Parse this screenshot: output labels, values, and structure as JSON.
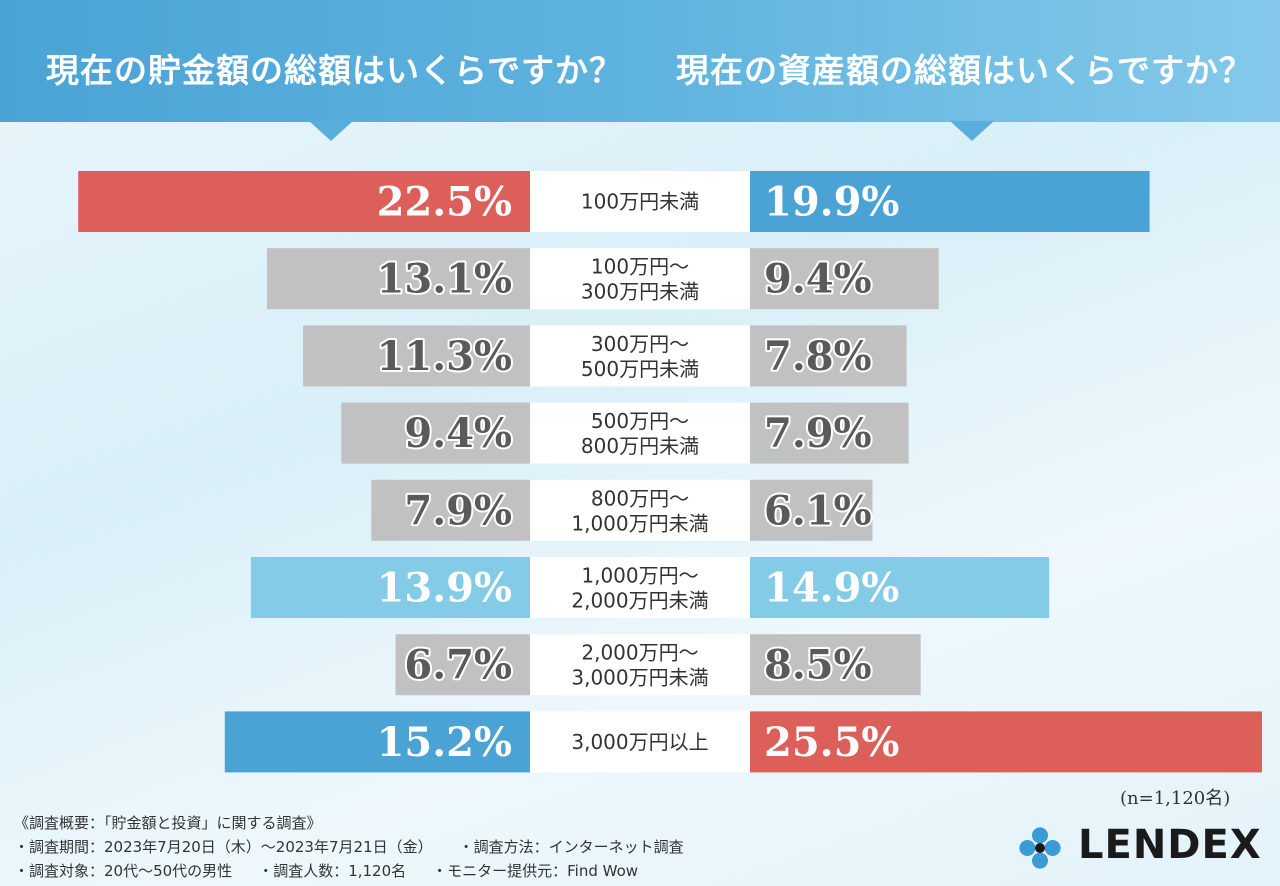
{
  "header": {
    "left_title": "現在の貯金額の総額はいくらですか？",
    "right_title": "現在の資産額の総額はいくらですか？"
  },
  "chart_data": {
    "type": "bar",
    "categories": [
      [
        "100万円未満"
      ],
      [
        "100万円～",
        "300万円未満"
      ],
      [
        "300万円～",
        "500万円未満"
      ],
      [
        "500万円～",
        "800万円未満"
      ],
      [
        "800万円～",
        "1,000万円未満"
      ],
      [
        "1,000万円～",
        "2,000万円未満"
      ],
      [
        "2,000万円～",
        "3,000万円未満"
      ],
      [
        "3,000万円以上"
      ]
    ],
    "series": [
      {
        "values": [
          22.5,
          13.1,
          11.3,
          9.4,
          7.9,
          13.9,
          6.7,
          15.2
        ],
        "labels": [
          "22.5%",
          "13.1%",
          "11.3%",
          "9.4%",
          "7.9%",
          "13.9%",
          "6.7%",
          "15.2%"
        ],
        "colors": [
          "#dc5f5a",
          "#c1c1c1",
          "#c1c1c1",
          "#c1c1c1",
          "#c1c1c1",
          "#83cbe7",
          "#c1c1c1",
          "#4aa2d5"
        ]
      },
      {
        "values": [
          19.9,
          9.4,
          7.8,
          7.9,
          6.1,
          14.9,
          8.5,
          25.5
        ],
        "labels": [
          "19.9%",
          "9.4%",
          "7.8%",
          "7.9%",
          "6.1%",
          "14.9%",
          "8.5%",
          "25.5%"
        ],
        "colors": [
          "#4aa2d5",
          "#c1c1c1",
          "#c1c1c1",
          "#c1c1c1",
          "#c1c1c1",
          "#83cbe7",
          "#c1c1c1",
          "#dc5f5a"
        ]
      }
    ],
    "xlim": [
      0,
      25.5
    ],
    "grid": false
  },
  "note": "(n=1,120名)",
  "survey": {
    "heading": "《調査概要：「貯金額と投資」に関する調査》",
    "period": "・調査期間：2023年7月20日（木）～2023年7月21日（金）",
    "method": "・調査方法：インターネット調査",
    "target": "・調査対象：20代～50代の男性",
    "count": "・調査人数：1,120名",
    "provider": "・モニター提供元：Find Wow"
  },
  "brand": {
    "name": "LENDEX",
    "icon": "lendex-logo-icon",
    "icon_color": "#3a9bd5"
  }
}
